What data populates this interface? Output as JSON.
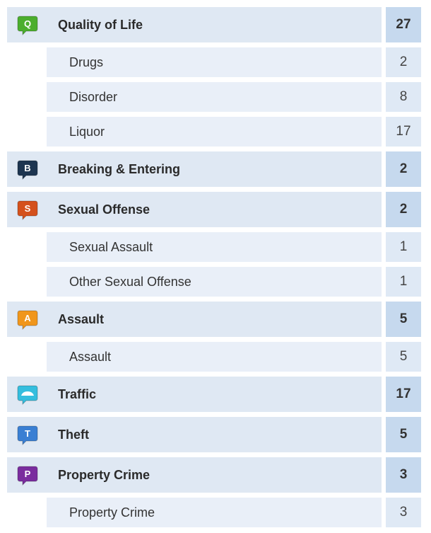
{
  "rows": [
    {
      "icon": "Q",
      "color": "#4cae2e",
      "label": "Quality of Life",
      "count": 27,
      "subrows": [
        {
          "label": "Drugs",
          "count": 2
        },
        {
          "label": "Disorder",
          "count": 8
        },
        {
          "label": "Liquor",
          "count": 17
        }
      ]
    },
    {
      "icon": "B",
      "color": "#1d3550",
      "label": "Breaking & Entering",
      "count": 2,
      "subrows": []
    },
    {
      "icon": "S",
      "color": "#d4511c",
      "label": "Sexual Offense",
      "count": 2,
      "subrows": [
        {
          "label": "Sexual Assault",
          "count": 1
        },
        {
          "label": "Other Sexual Offense",
          "count": 1
        }
      ]
    },
    {
      "icon": "A",
      "color": "#f0961c",
      "label": "Assault",
      "count": 5,
      "subrows": [
        {
          "label": "Assault",
          "count": 5
        }
      ]
    },
    {
      "color": "#35bede",
      "label": "Traffic",
      "count": 17,
      "subrows": []
    },
    {
      "icon": "T",
      "color": "#3a7fd3",
      "label": "Theft",
      "count": 5,
      "subrows": []
    },
    {
      "icon": "P",
      "color": "#7a2d9e",
      "label": "Property Crime",
      "count": 3,
      "subrows": [
        {
          "label": "Property Crime",
          "count": 3
        }
      ]
    }
  ]
}
